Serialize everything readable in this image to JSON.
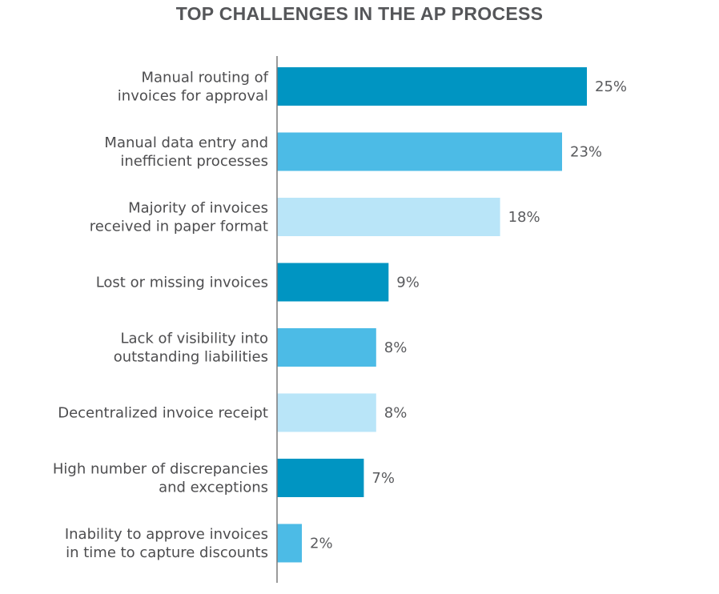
{
  "chart_data": {
    "type": "bar",
    "orientation": "horizontal",
    "title": "TOP CHALLENGES IN THE AP PROCESS",
    "xlabel": "",
    "ylabel": "",
    "value_suffix": "%",
    "xlim": [
      0,
      25
    ],
    "categories": [
      [
        "Manual routing of",
        "invoices for approval"
      ],
      [
        "Manual data entry and",
        "inefficient processes"
      ],
      [
        "Majority of invoices",
        "received in paper format"
      ],
      [
        "Lost or missing invoices"
      ],
      [
        "Lack of visibility into",
        "outstanding liabilities"
      ],
      [
        "Decentralized invoice receipt"
      ],
      [
        "High number of discrepancies",
        "and exceptions"
      ],
      [
        "Inability to approve invoices",
        "in time to capture discounts"
      ]
    ],
    "values": [
      25,
      23,
      18,
      9,
      8,
      8,
      7,
      2
    ],
    "value_labels": [
      "25%",
      "23%",
      "18%",
      "9%",
      "8%",
      "8%",
      "7%",
      "2%"
    ],
    "colors": [
      "#0095c2",
      "#4cbbe6",
      "#b9e5f8",
      "#0095c2",
      "#4cbbe6",
      "#b9e5f8",
      "#0095c2",
      "#4cbbe6"
    ],
    "axis_color": "#7a7a7a",
    "grid": false
  }
}
